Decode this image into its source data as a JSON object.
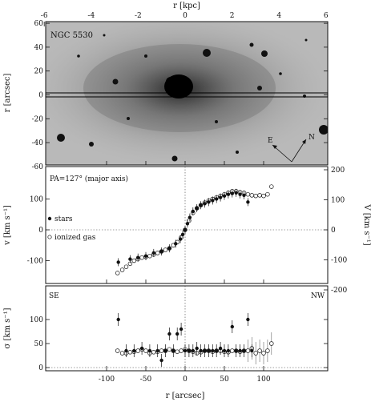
{
  "galaxy_label": "NGC 5530",
  "top_axis": {
    "label": "r [kpc]",
    "ticks": [
      "-6",
      "-4",
      "-2",
      "0",
      "2",
      "4",
      "6"
    ]
  },
  "image_panel": {
    "ylabel": "r [arcsec]",
    "yticks": [
      "60",
      "40",
      "20",
      "0",
      "-20",
      "-40",
      "-60"
    ],
    "compass": {
      "east": "E",
      "north": "N"
    }
  },
  "velocity_panel": {
    "annotation": "PA=127° (major axis)",
    "ylabel_left": "v [km s⁻¹]",
    "ylabel_right": "V [km s⁻¹]",
    "yticks_left": [
      "100",
      "0",
      "-100"
    ],
    "yticks_right": [
      "200",
      "100",
      "0",
      "-100",
      "-200"
    ],
    "legend_stars": "stars",
    "legend_gas": "ionized gas"
  },
  "dispersion_panel": {
    "ylabel": "σ [km s⁻¹]",
    "yticks": [
      "100",
      "50",
      "0"
    ],
    "label_se": "SE",
    "label_nw": "NW"
  },
  "bottom_axis": {
    "label": "r [arcsec]",
    "ticks": [
      "-100",
      "-50",
      "0",
      "50",
      "100"
    ]
  },
  "chart_data": [
    {
      "type": "scatter",
      "title": "",
      "xlabel": "r [arcsec]",
      "ylabel": "v [km s⁻¹]",
      "xlim": [
        -120,
        120
      ],
      "ylim": [
        -150,
        150
      ],
      "series": [
        {
          "name": "stars",
          "x": [
            -85,
            -70,
            -60,
            -50,
            -40,
            -30,
            -20,
            -12,
            -6,
            -3,
            0,
            3,
            6,
            10,
            15,
            20,
            25,
            30,
            35,
            40,
            45,
            50,
            55,
            60,
            65,
            70,
            75,
            80
          ],
          "y": [
            -105,
            -95,
            -90,
            -85,
            -75,
            -70,
            -60,
            -45,
            -30,
            -15,
            0,
            20,
            40,
            60,
            70,
            80,
            85,
            90,
            95,
            100,
            105,
            110,
            115,
            118,
            120,
            115,
            112,
            90
          ]
        },
        {
          "name": "ionized gas",
          "x": [
            -86,
            -80,
            -75,
            -70,
            -65,
            -60,
            -55,
            -50,
            -45,
            -40,
            -35,
            -30,
            -25,
            -20,
            -15,
            -10,
            -5,
            0,
            5,
            10,
            15,
            20,
            25,
            30,
            35,
            40,
            45,
            50,
            55,
            60,
            65,
            70,
            75,
            80,
            85,
            90,
            95,
            100,
            105,
            110
          ],
          "y": [
            -140,
            -130,
            -120,
            -110,
            -100,
            -95,
            -90,
            -88,
            -85,
            -80,
            -75,
            -70,
            -65,
            -60,
            -50,
            -40,
            -25,
            0,
            30,
            55,
            70,
            80,
            88,
            95,
            100,
            105,
            110,
            115,
            120,
            125,
            125,
            122,
            120,
            115,
            112,
            110,
            112,
            110,
            115,
            140
          ]
        }
      ]
    },
    {
      "type": "scatter",
      "title": "",
      "xlabel": "r [arcsec]",
      "ylabel": "σ [km s⁻¹]",
      "xlim": [
        -120,
        120
      ],
      "ylim": [
        -5,
        150
      ],
      "series": [
        {
          "name": "stars",
          "x": [
            -85,
            -75,
            -65,
            -55,
            -45,
            -35,
            -30,
            -25,
            -20,
            -15,
            -10,
            -5,
            0,
            5,
            10,
            15,
            20,
            25,
            30,
            35,
            40,
            45,
            50,
            55,
            60,
            65,
            70,
            75,
            80,
            85
          ],
          "y": [
            100,
            35,
            35,
            40,
            35,
            35,
            15,
            35,
            70,
            35,
            70,
            80,
            35,
            35,
            35,
            40,
            35,
            35,
            35,
            35,
            35,
            40,
            35,
            35,
            85,
            35,
            35,
            35,
            100,
            35
          ]
        },
        {
          "name": "ionized gas",
          "x": [
            -86,
            -80,
            -75,
            -70,
            -65,
            -60,
            -55,
            -50,
            -45,
            -40,
            -35,
            -30,
            -25,
            -20,
            -15,
            -10,
            -5,
            0,
            5,
            10,
            15,
            20,
            25,
            30,
            35,
            40,
            45,
            50,
            55,
            60,
            65,
            70,
            75,
            80,
            85,
            90,
            95,
            100,
            105,
            110
          ],
          "y": [
            35,
            30,
            30,
            32,
            33,
            35,
            38,
            35,
            30,
            32,
            33,
            35,
            35,
            38,
            35,
            33,
            35,
            38,
            35,
            33,
            30,
            32,
            35,
            35,
            33,
            35,
            35,
            33,
            32,
            35,
            35,
            33,
            35,
            35,
            40,
            30,
            35,
            30,
            35,
            50
          ]
        }
      ]
    }
  ]
}
